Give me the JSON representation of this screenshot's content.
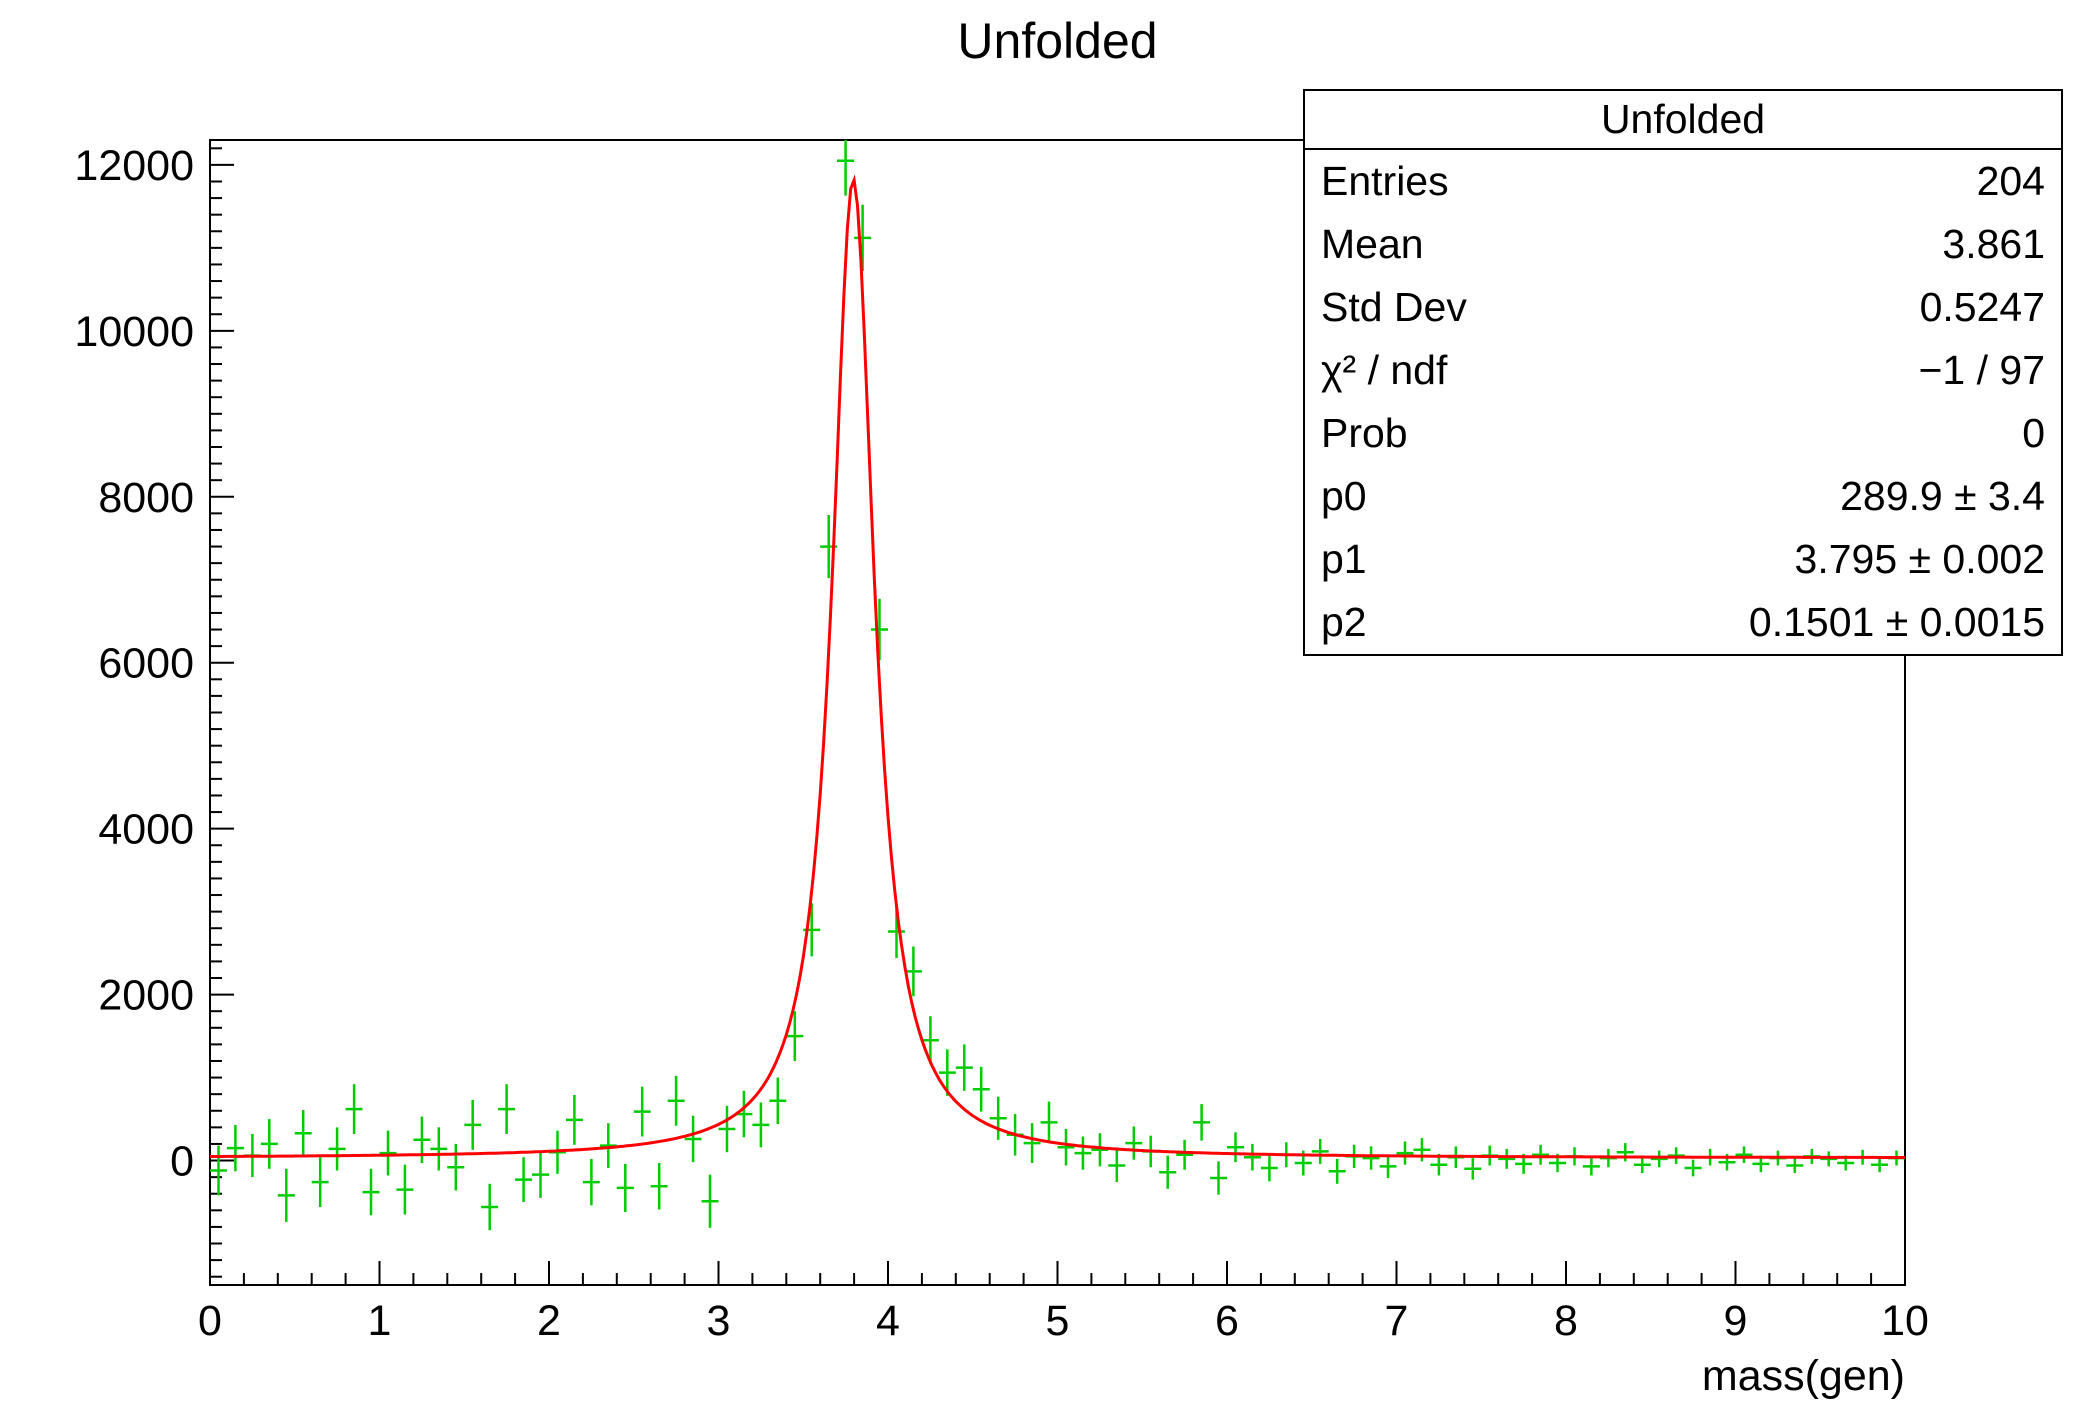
{
  "chart_data": {
    "type": "scatter",
    "title": "Unfolded",
    "xlabel": "mass(gen)",
    "ylabel": "",
    "xlim": [
      0,
      10
    ],
    "ylim": [
      -1500,
      12300
    ],
    "xticks": [
      0,
      1,
      2,
      3,
      4,
      5,
      6,
      7,
      8,
      9,
      10
    ],
    "yticks": [
      0,
      2000,
      4000,
      6000,
      8000,
      10000,
      12000
    ],
    "x_minor_step": 0.2,
    "y_minor_step": 200,
    "bin_width": 0.1,
    "grid": false,
    "legend_position": "none",
    "series": [
      {
        "name": "unfolded-histogram",
        "type": "errorbar",
        "marker": "error-cross",
        "color": "#00cc00",
        "points": [
          [
            0.05,
            -120,
            300
          ],
          [
            0.15,
            150,
            280
          ],
          [
            0.25,
            60,
            260
          ],
          [
            0.35,
            200,
            300
          ],
          [
            0.45,
            -420,
            320
          ],
          [
            0.55,
            330,
            280
          ],
          [
            0.65,
            -260,
            300
          ],
          [
            0.75,
            140,
            260
          ],
          [
            0.85,
            620,
            300
          ],
          [
            0.95,
            -380,
            280
          ],
          [
            1.05,
            90,
            270
          ],
          [
            1.15,
            -350,
            300
          ],
          [
            1.25,
            250,
            280
          ],
          [
            1.35,
            140,
            260
          ],
          [
            1.45,
            -80,
            280
          ],
          [
            1.55,
            430,
            300
          ],
          [
            1.65,
            -560,
            280
          ],
          [
            1.75,
            620,
            300
          ],
          [
            1.85,
            -230,
            270
          ],
          [
            1.95,
            -170,
            280
          ],
          [
            2.05,
            100,
            260
          ],
          [
            2.15,
            490,
            300
          ],
          [
            2.25,
            -260,
            280
          ],
          [
            2.35,
            180,
            270
          ],
          [
            2.45,
            -330,
            290
          ],
          [
            2.55,
            590,
            300
          ],
          [
            2.65,
            -310,
            280
          ],
          [
            2.75,
            720,
            300
          ],
          [
            2.85,
            260,
            280
          ],
          [
            2.95,
            -490,
            320
          ],
          [
            3.05,
            380,
            280
          ],
          [
            3.15,
            560,
            280
          ],
          [
            3.25,
            430,
            270
          ],
          [
            3.35,
            720,
            280
          ],
          [
            3.45,
            1500,
            300
          ],
          [
            3.55,
            2780,
            320
          ],
          [
            3.65,
            7400,
            380
          ],
          [
            3.75,
            12050,
            420
          ],
          [
            3.85,
            11120,
            400
          ],
          [
            3.95,
            6400,
            370
          ],
          [
            4.05,
            2760,
            320
          ],
          [
            4.15,
            2280,
            300
          ],
          [
            4.25,
            1450,
            290
          ],
          [
            4.35,
            1060,
            280
          ],
          [
            4.45,
            1120,
            280
          ],
          [
            4.55,
            860,
            270
          ],
          [
            4.65,
            510,
            260
          ],
          [
            4.75,
            310,
            250
          ],
          [
            4.85,
            210,
            240
          ],
          [
            4.95,
            460,
            250
          ],
          [
            5.05,
            160,
            220
          ],
          [
            5.15,
            90,
            200
          ],
          [
            5.25,
            130,
            200
          ],
          [
            5.35,
            -60,
            200
          ],
          [
            5.45,
            210,
            200
          ],
          [
            5.55,
            110,
            190
          ],
          [
            5.65,
            -140,
            200
          ],
          [
            5.75,
            70,
            180
          ],
          [
            5.85,
            460,
            220
          ],
          [
            5.95,
            -210,
            200
          ],
          [
            6.05,
            160,
            180
          ],
          [
            6.15,
            40,
            160
          ],
          [
            6.25,
            -90,
            160
          ],
          [
            6.35,
            70,
            150
          ],
          [
            6.45,
            -30,
            150
          ],
          [
            6.55,
            110,
            150
          ],
          [
            6.65,
            -130,
            150
          ],
          [
            6.75,
            50,
            140
          ],
          [
            6.85,
            30,
            140
          ],
          [
            6.95,
            -70,
            140
          ],
          [
            7.05,
            90,
            140
          ],
          [
            7.15,
            130,
            140
          ],
          [
            7.25,
            -50,
            130
          ],
          [
            7.35,
            40,
            130
          ],
          [
            7.45,
            -100,
            130
          ],
          [
            7.55,
            60,
            120
          ],
          [
            7.65,
            20,
            120
          ],
          [
            7.75,
            -40,
            120
          ],
          [
            7.85,
            70,
            120
          ],
          [
            7.95,
            -30,
            110
          ],
          [
            8.05,
            50,
            110
          ],
          [
            8.15,
            -70,
            110
          ],
          [
            8.25,
            30,
            110
          ],
          [
            8.35,
            100,
            110
          ],
          [
            8.45,
            -50,
            100
          ],
          [
            8.55,
            20,
            100
          ],
          [
            8.65,
            60,
            100
          ],
          [
            8.75,
            -90,
            100
          ],
          [
            8.85,
            40,
            100
          ],
          [
            8.95,
            -20,
            100
          ],
          [
            9.05,
            70,
            100
          ],
          [
            9.15,
            -40,
            100
          ],
          [
            9.25,
            30,
            90
          ],
          [
            9.35,
            -60,
            90
          ],
          [
            9.45,
            50,
            90
          ],
          [
            9.55,
            20,
            90
          ],
          [
            9.65,
            -30,
            90
          ],
          [
            9.75,
            40,
            90
          ],
          [
            9.85,
            -50,
            90
          ],
          [
            9.95,
            30,
            90
          ]
        ]
      },
      {
        "name": "breit-wigner-fit",
        "type": "curve",
        "shape": "lorentzian",
        "color": "#ff0000",
        "center": 3.795,
        "hwhm": 0.15,
        "peak": 11800,
        "baseline": 30
      }
    ]
  },
  "stats": {
    "title": "Unfolded",
    "rows": [
      {
        "label": "Entries",
        "value": "204"
      },
      {
        "label": "Mean",
        "value": "3.861"
      },
      {
        "label": "Std Dev",
        "value": "0.5247"
      },
      {
        "label": "χ² / ndf",
        "value": "−1 / 97"
      },
      {
        "label": "Prob",
        "value": "0"
      },
      {
        "label": "p0",
        "value": "289.9 ± 3.4"
      },
      {
        "label": "p1",
        "value": "3.795 ± 0.002"
      },
      {
        "label": "p2",
        "value": "0.1501 ± 0.0015"
      }
    ]
  }
}
